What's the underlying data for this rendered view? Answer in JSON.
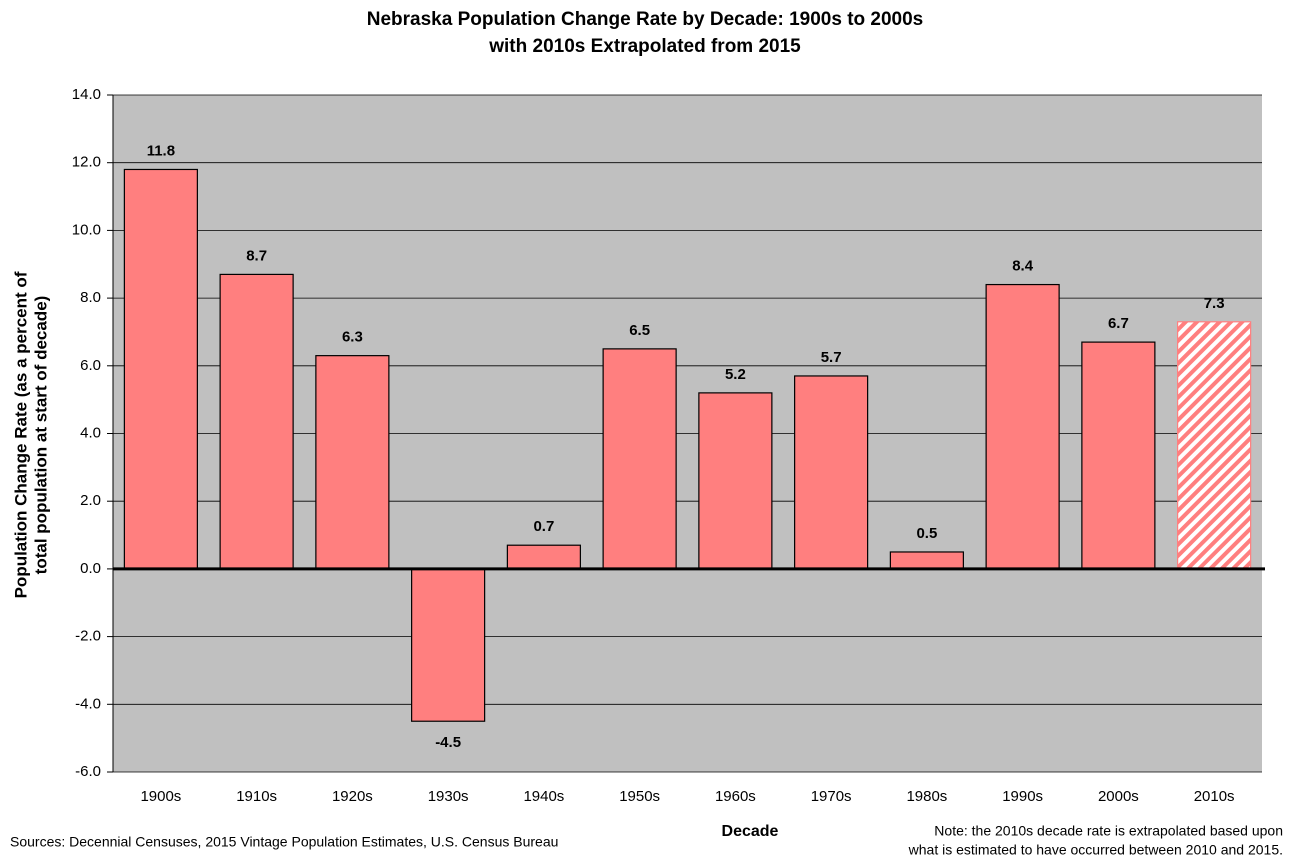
{
  "chart_data": {
    "type": "bar",
    "title": "Nebraska Population Change Rate by Decade: 1900s to 2000s",
    "subtitle": "with 2010s Extrapolated from 2015",
    "ylabel": [
      "Population Change Rate (as a percent of",
      "total population at start of decade)"
    ],
    "xlabel": "Decade",
    "source": "Sources: Decennial Censuses, 2015 Vintage Population Estimates, U.S. Census Bureau",
    "note": [
      "Note: the 2010s decade rate is extrapolated based upon",
      "what is estimated to have occurred between 2010 and 2015."
    ],
    "categories": [
      "1900s",
      "1910s",
      "1920s",
      "1930s",
      "1940s",
      "1950s",
      "1960s",
      "1970s",
      "1980s",
      "1990s",
      "2000s",
      "2010s"
    ],
    "values": [
      11.8,
      8.7,
      6.3,
      -4.5,
      0.7,
      6.5,
      5.2,
      5.7,
      0.5,
      8.4,
      6.7,
      7.3
    ],
    "patterns": [
      "solid",
      "solid",
      "solid",
      "solid",
      "solid",
      "solid",
      "solid",
      "solid",
      "solid",
      "solid",
      "solid",
      "hatched"
    ],
    "color": "#ff7f7f",
    "ylim": [
      -6,
      14
    ],
    "yticks": [
      {
        "value": -6,
        "label": "-6.0"
      },
      {
        "value": -4,
        "label": "-4.0"
      },
      {
        "value": -2,
        "label": "-2.0"
      },
      {
        "value": 0,
        "label": "0.0"
      },
      {
        "value": 2,
        "label": "2.0"
      },
      {
        "value": 4,
        "label": "4.0"
      },
      {
        "value": 6,
        "label": "6.0"
      },
      {
        "value": 8,
        "label": "8.0"
      },
      {
        "value": 10,
        "label": "10.0"
      },
      {
        "value": 12,
        "label": "12.0"
      },
      {
        "value": 14,
        "label": "14.0"
      }
    ],
    "grid": true
  }
}
